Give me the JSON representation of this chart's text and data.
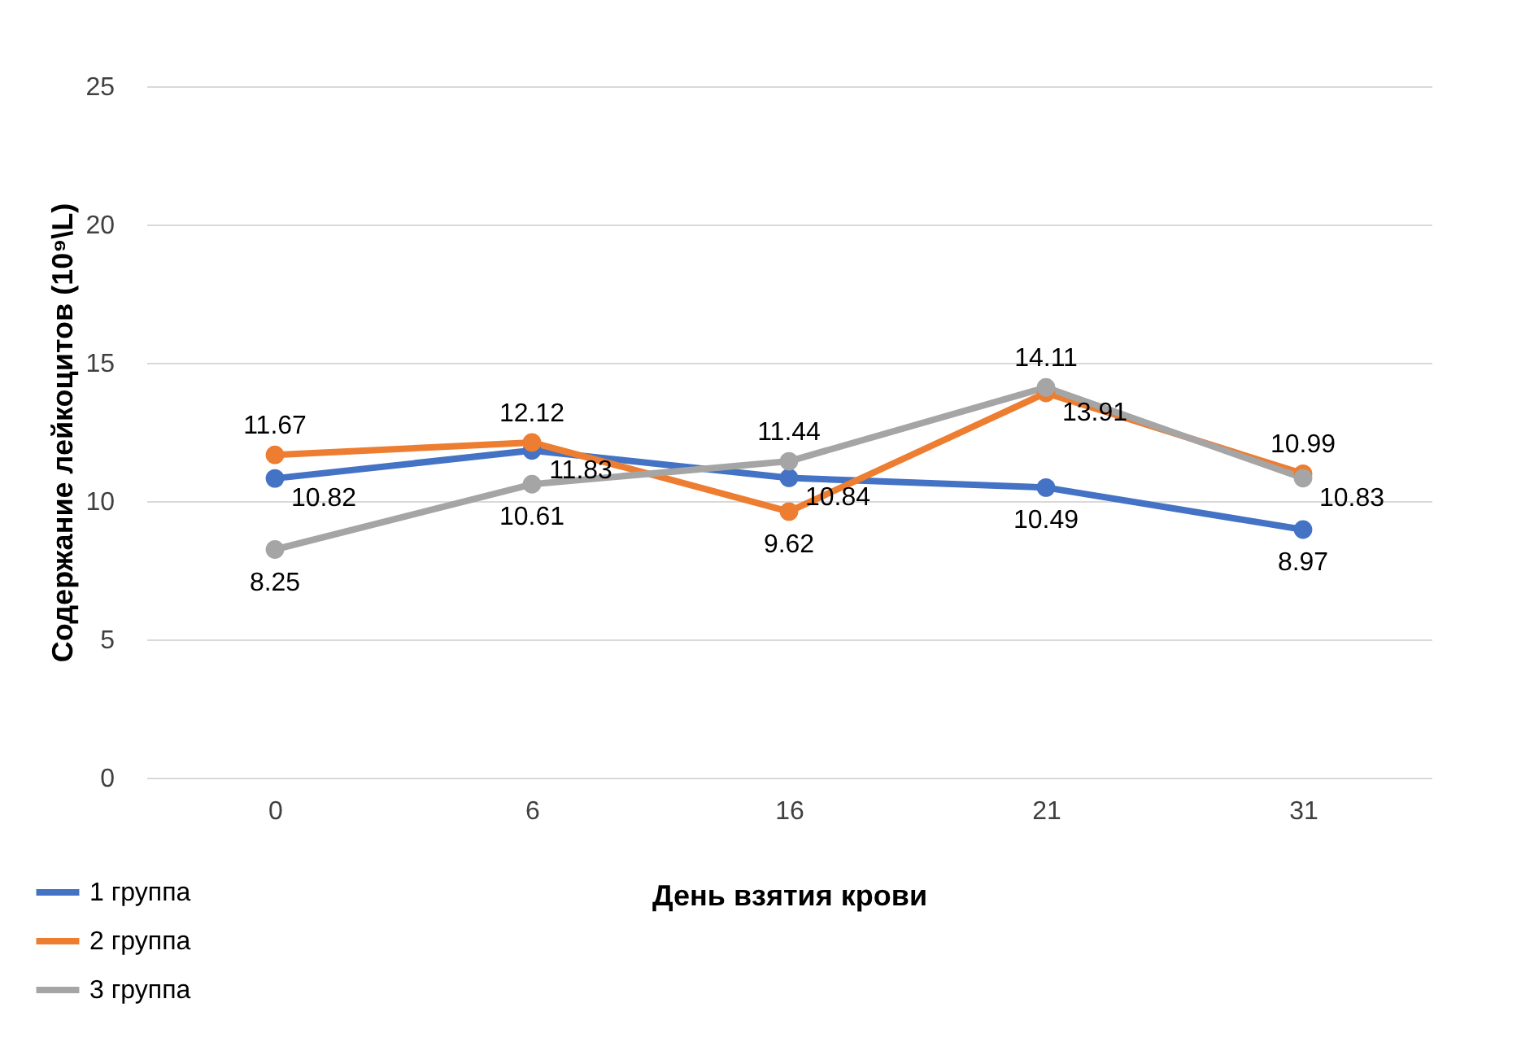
{
  "chart_data": {
    "type": "line",
    "xlabel": "День взятия крови",
    "ylabel": "Содержание лейкоцитов (10⁹\\L)",
    "categories": [
      "0",
      "6",
      "16",
      "21",
      "31"
    ],
    "series": [
      {
        "name": "1 группа",
        "color": "#4472c4",
        "values": [
          10.82,
          11.83,
          10.84,
          10.49,
          8.97
        ]
      },
      {
        "name": "2 группа",
        "color": "#ed7d31",
        "values": [
          11.67,
          12.12,
          9.62,
          13.91,
          10.99
        ]
      },
      {
        "name": "3 группа",
        "color": "#a5a5a5",
        "values": [
          8.25,
          10.61,
          11.44,
          14.11,
          10.83
        ]
      }
    ],
    "ylim": [
      0,
      25
    ],
    "yticks": [
      0,
      5,
      10,
      15,
      20,
      25
    ],
    "grid": "y",
    "legend": "bottom left",
    "marker": "circle",
    "line_style": "solid",
    "data_labels": true
  }
}
